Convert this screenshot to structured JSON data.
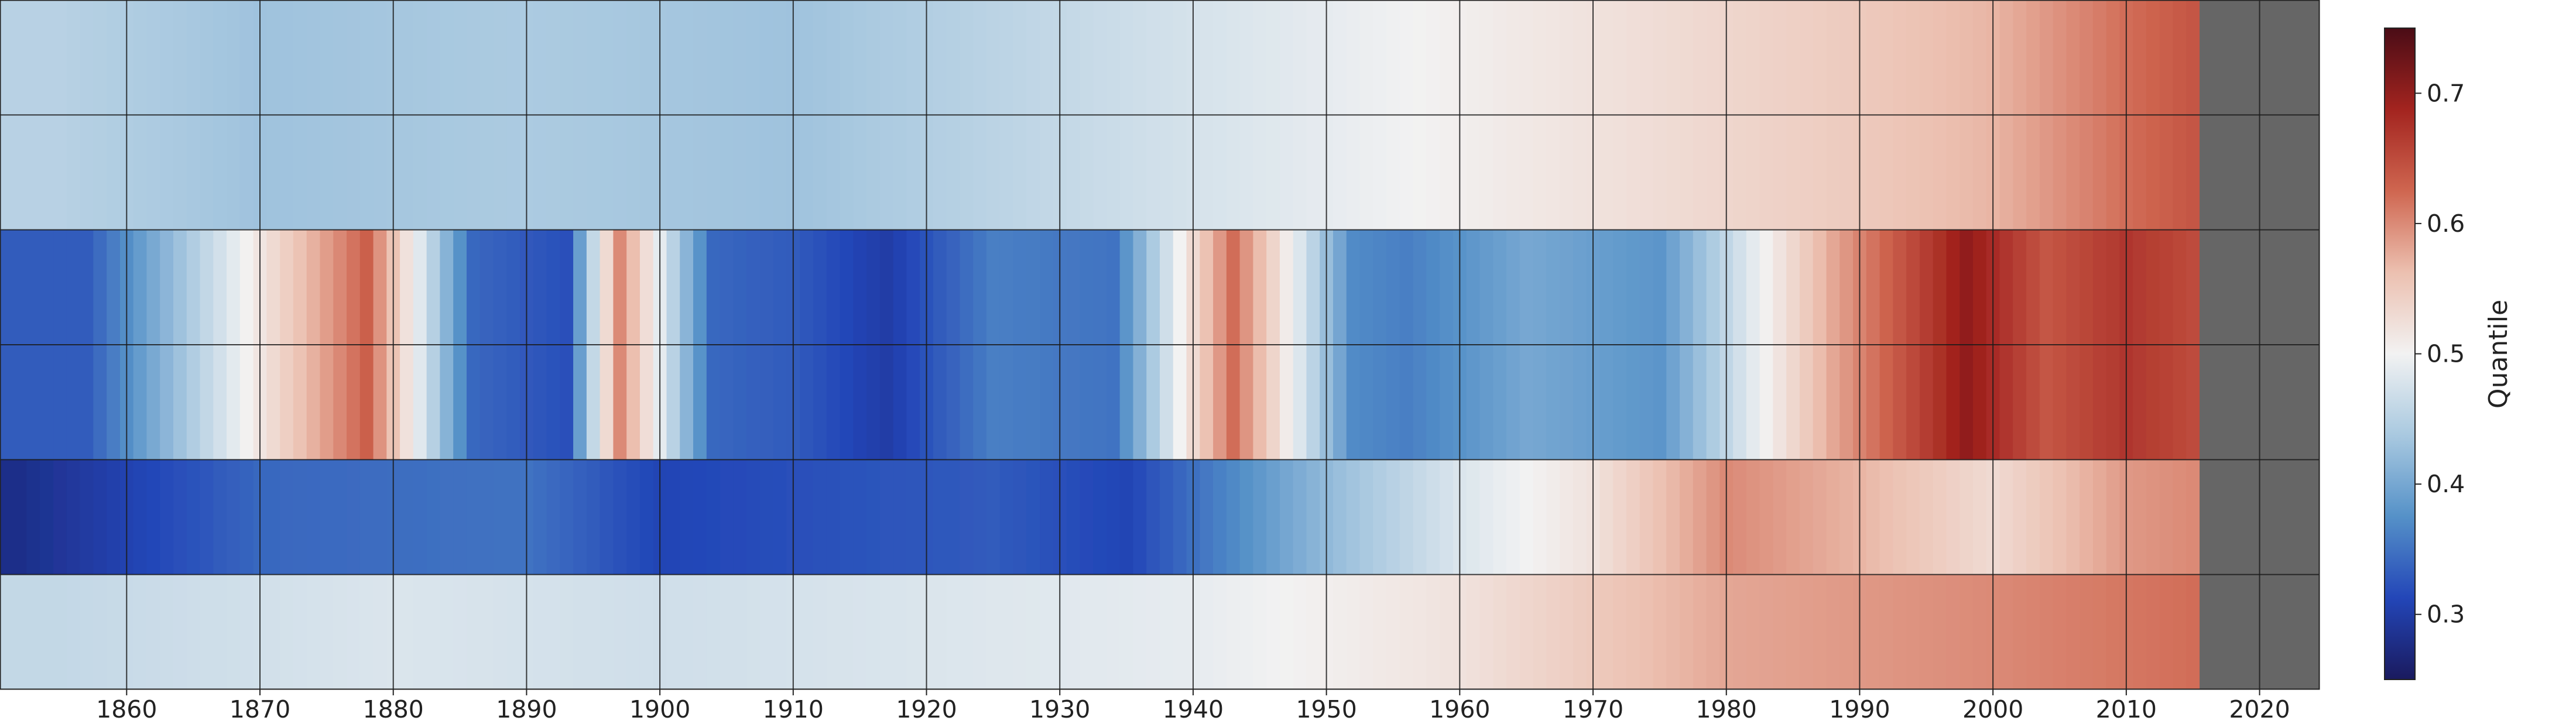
{
  "chart_data": {
    "type": "heatmap",
    "title": "",
    "xlabel": "",
    "ylabel": "",
    "x_range": [
      1850.5,
      2024.5
    ],
    "data_end_year": 2015,
    "no_data_color": "#666666",
    "grid": true,
    "grid_rows": 6,
    "x_ticks": [
      1860,
      1870,
      1880,
      1890,
      1900,
      1910,
      1920,
      1930,
      1940,
      1950,
      1960,
      1970,
      1980,
      1990,
      2000,
      2010,
      2020
    ],
    "x_tick_labels": [
      "1860",
      "1870",
      "1880",
      "1890",
      "1900",
      "1910",
      "1920",
      "1930",
      "1940",
      "1950",
      "1960",
      "1970",
      "1980",
      "1990",
      "2000",
      "2010",
      "2020"
    ],
    "colorbar": {
      "label": "Quantile",
      "range": [
        0.25,
        0.75
      ],
      "ticks": [
        0.3,
        0.4,
        0.5,
        0.6,
        0.7
      ],
      "tick_labels": [
        "0.3",
        "0.4",
        "0.5",
        "0.6",
        "0.7"
      ],
      "colormap": "RdBu_r",
      "colors": [
        "#1a1a5e",
        "#2346b8",
        "#5591c8",
        "#a9c9e0",
        "#f2f2f2",
        "#ecc0b0",
        "#cf6650",
        "#a3241f",
        "#4a0c16"
      ]
    },
    "row_bands": [
      {
        "band": "top rows",
        "years": [
          1855,
          1870,
          1890,
          1910,
          1930,
          1950,
          1970,
          1990,
          2000,
          2010,
          2015
        ],
        "quantiles": [
          0.45,
          0.43,
          0.44,
          0.43,
          0.46,
          0.49,
          0.52,
          0.55,
          0.57,
          0.62,
          0.64
        ]
      },
      {
        "band": "middle rows",
        "years": [
          1857,
          1878,
          1886,
          1893,
          1897,
          1904,
          1910,
          1917,
          1925,
          1934,
          1943,
          1952,
          1956,
          1965,
          1975,
          1988,
          1998,
          2004,
          2010,
          2015
        ],
        "quantiles": [
          0.33,
          0.63,
          0.34,
          0.32,
          0.6,
          0.34,
          0.33,
          0.3,
          0.36,
          0.35,
          0.62,
          0.37,
          0.36,
          0.4,
          0.38,
          0.58,
          0.7,
          0.64,
          0.67,
          0.65
        ]
      },
      {
        "band": "lower rows",
        "years": [
          1852,
          1870,
          1890,
          1900,
          1910,
          1925,
          1935,
          1950,
          1960,
          1970,
          1980,
          1990,
          2000,
          2010,
          2015
        ],
        "quantiles": [
          0.28,
          0.34,
          0.35,
          0.31,
          0.32,
          0.33,
          0.31,
          0.42,
          0.48,
          0.52,
          0.6,
          0.57,
          0.53,
          0.59,
          0.6
        ]
      },
      {
        "band": "bottom row",
        "years": [
          1855,
          1880,
          1900,
          1920,
          1940,
          1960,
          1980,
          2000,
          2015
        ],
        "quantiles": [
          0.46,
          0.48,
          0.47,
          0.48,
          0.49,
          0.52,
          0.58,
          0.6,
          0.62
        ]
      }
    ]
  }
}
